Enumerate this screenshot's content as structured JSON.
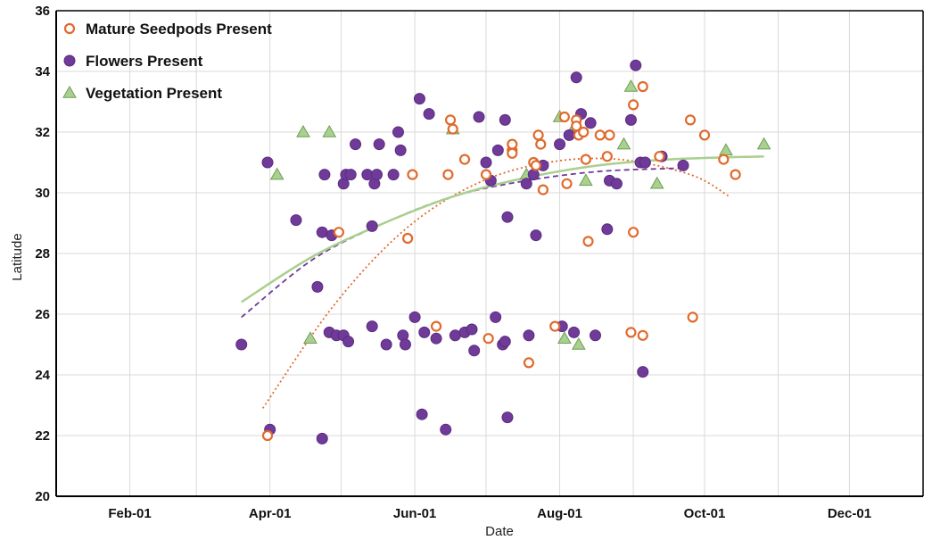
{
  "chart_data": {
    "type": "scatter",
    "xlabel": "Date",
    "ylabel": "Latitude",
    "x_ticks": [
      "Feb-01",
      "Apr-01",
      "Jun-01",
      "Aug-01",
      "Oct-01",
      "Dec-01"
    ],
    "x_tick_days": [
      32,
      91,
      152,
      213,
      274,
      335
    ],
    "x_range_days": [
      1,
      366
    ],
    "ylim": [
      20,
      36
    ],
    "y_ticks": [
      20,
      22,
      24,
      26,
      28,
      30,
      32,
      34,
      36
    ],
    "grid": true,
    "legend_position": "top-left",
    "series": [
      {
        "name": "Mature Seedpods Present",
        "marker": "open-circle",
        "color": "#e06a2c",
        "points": [
          [
            "Mar-31",
            22.0
          ],
          [
            "Apr-30",
            28.7
          ],
          [
            "May-29",
            28.5
          ],
          [
            "May-31",
            30.6
          ],
          [
            "Jun-10",
            25.6
          ],
          [
            "Jun-15",
            30.6
          ],
          [
            "Jun-16",
            32.4
          ],
          [
            "Jun-17",
            32.1
          ],
          [
            "Jun-22",
            31.1
          ],
          [
            "Jul-01",
            30.6
          ],
          [
            "Jul-02",
            25.2
          ],
          [
            "Jul-12",
            31.4
          ],
          [
            "Jul-12",
            31.6
          ],
          [
            "Jul-12",
            31.3
          ],
          [
            "Jul-19",
            24.4
          ],
          [
            "Jul-21",
            31.0
          ],
          [
            "Jul-22",
            30.9
          ],
          [
            "Jul-23",
            31.9
          ],
          [
            "Jul-24",
            31.6
          ],
          [
            "Jul-25",
            30.1
          ],
          [
            "Jul-30",
            25.6
          ],
          [
            "Aug-03",
            32.5
          ],
          [
            "Aug-04",
            30.3
          ],
          [
            "Aug-08",
            32.4
          ],
          [
            "Aug-08",
            32.2
          ],
          [
            "Aug-09",
            31.9
          ],
          [
            "Aug-11",
            32.0
          ],
          [
            "Aug-12",
            31.1
          ],
          [
            "Aug-13",
            28.4
          ],
          [
            "Aug-18",
            31.9
          ],
          [
            "Aug-21",
            31.2
          ],
          [
            "Aug-22",
            31.9
          ],
          [
            "Aug-31",
            25.4
          ],
          [
            "Sep-01",
            32.9
          ],
          [
            "Sep-01",
            28.7
          ],
          [
            "Sep-05",
            33.5
          ],
          [
            "Sep-05",
            25.3
          ],
          [
            "Sep-12",
            31.2
          ],
          [
            "Sep-25",
            32.4
          ],
          [
            "Sep-26",
            25.9
          ],
          [
            "Oct-01",
            31.9
          ],
          [
            "Oct-09",
            31.1
          ],
          [
            "Oct-14",
            30.6
          ]
        ]
      },
      {
        "name": "Flowers Present",
        "marker": "filled-circle",
        "color": "#6f3a98",
        "points": [
          [
            "Mar-20",
            25.0
          ],
          [
            "Mar-31",
            31.0
          ],
          [
            "Apr-01",
            22.2
          ],
          [
            "Apr-12",
            29.1
          ],
          [
            "Apr-21",
            26.9
          ],
          [
            "Apr-23",
            21.9
          ],
          [
            "Apr-23",
            28.7
          ],
          [
            "Apr-24",
            30.6
          ],
          [
            "Apr-26",
            25.4
          ],
          [
            "Apr-27",
            28.6
          ],
          [
            "Apr-29",
            25.3
          ],
          [
            "May-02",
            25.3
          ],
          [
            "May-02",
            30.3
          ],
          [
            "May-03",
            30.6
          ],
          [
            "May-04",
            25.1
          ],
          [
            "May-05",
            30.6
          ],
          [
            "May-07",
            31.6
          ],
          [
            "May-12",
            30.6
          ],
          [
            "May-14",
            25.6
          ],
          [
            "May-14",
            28.9
          ],
          [
            "May-15",
            30.3
          ],
          [
            "May-16",
            30.6
          ],
          [
            "May-17",
            31.6
          ],
          [
            "May-20",
            25.0
          ],
          [
            "May-23",
            30.6
          ],
          [
            "May-25",
            32.0
          ],
          [
            "May-26",
            31.4
          ],
          [
            "May-27",
            25.3
          ],
          [
            "May-28",
            25.0
          ],
          [
            "Jun-01",
            25.9
          ],
          [
            "Jun-03",
            33.1
          ],
          [
            "Jun-04",
            22.7
          ],
          [
            "Jun-05",
            25.4
          ],
          [
            "Jun-07",
            32.6
          ],
          [
            "Jun-10",
            25.2
          ],
          [
            "Jun-14",
            22.2
          ],
          [
            "Jun-18",
            25.3
          ],
          [
            "Jun-22",
            25.4
          ],
          [
            "Jun-25",
            25.5
          ],
          [
            "Jun-26",
            24.8
          ],
          [
            "Jun-28",
            32.5
          ],
          [
            "Jul-01",
            31.0
          ],
          [
            "Jul-03",
            30.4
          ],
          [
            "Jul-05",
            25.9
          ],
          [
            "Jul-06",
            31.4
          ],
          [
            "Jul-08",
            25.0
          ],
          [
            "Jul-09",
            32.4
          ],
          [
            "Jul-09",
            25.1
          ],
          [
            "Jul-10",
            29.2
          ],
          [
            "Jul-10",
            22.6
          ],
          [
            "Jul-18",
            30.3
          ],
          [
            "Jul-19",
            25.3
          ],
          [
            "Jul-21",
            30.6
          ],
          [
            "Jul-22",
            28.6
          ],
          [
            "Jul-25",
            30.9
          ],
          [
            "Aug-01",
            31.6
          ],
          [
            "Aug-02",
            25.6
          ],
          [
            "Aug-05",
            31.9
          ],
          [
            "Aug-07",
            25.4
          ],
          [
            "Aug-08",
            33.8
          ],
          [
            "Aug-10",
            32.6
          ],
          [
            "Aug-14",
            32.3
          ],
          [
            "Aug-16",
            25.3
          ],
          [
            "Aug-21",
            28.8
          ],
          [
            "Aug-22",
            30.4
          ],
          [
            "Aug-25",
            30.3
          ],
          [
            "Aug-31",
            32.4
          ],
          [
            "Sep-02",
            34.2
          ],
          [
            "Sep-04",
            31.0
          ],
          [
            "Sep-05",
            24.1
          ],
          [
            "Sep-06",
            31.0
          ],
          [
            "Sep-13",
            31.2
          ],
          [
            "Sep-22",
            30.9
          ]
        ]
      },
      {
        "name": "Vegetation Present",
        "marker": "triangle",
        "color": "#a9d08e",
        "points": [
          [
            "Apr-04",
            30.6
          ],
          [
            "Apr-15",
            32.0
          ],
          [
            "Apr-18",
            25.2
          ],
          [
            "Apr-26",
            32.0
          ],
          [
            "Jun-17",
            32.1
          ],
          [
            "Jul-18",
            30.6
          ],
          [
            "Aug-01",
            32.5
          ],
          [
            "Aug-03",
            25.2
          ],
          [
            "Aug-06",
            32.0
          ],
          [
            "Aug-09",
            25.0
          ],
          [
            "Aug-12",
            30.4
          ],
          [
            "Aug-28",
            31.6
          ],
          [
            "Aug-31",
            33.5
          ],
          [
            "Sep-11",
            30.3
          ],
          [
            "Oct-10",
            31.4
          ],
          [
            "Oct-26",
            31.6
          ]
        ]
      }
    ],
    "trendlines": [
      {
        "series": "Mature Seedpods Present",
        "style": "dotted",
        "color": "#e06a2c",
        "x_range": [
          "Mar-29",
          "Oct-11"
        ],
        "points": [
          [
            "Mar-29",
            22.9
          ],
          [
            "Apr-28",
            26.3
          ],
          [
            "May-28",
            28.8
          ],
          [
            "Jun-27",
            30.3
          ],
          [
            "Jul-27",
            31.0
          ],
          [
            "Aug-26",
            31.1
          ],
          [
            "Sep-25",
            30.6
          ],
          [
            "Oct-11",
            29.9
          ]
        ]
      },
      {
        "series": "Flowers Present",
        "style": "dashed",
        "color": "#6f3a98",
        "x_range": [
          "Mar-20",
          "Sep-22"
        ],
        "points": [
          [
            "Mar-20",
            25.9
          ],
          [
            "Apr-19",
            27.8
          ],
          [
            "May-19",
            29.0
          ],
          [
            "Jun-18",
            29.9
          ],
          [
            "Jul-18",
            30.4
          ],
          [
            "Aug-17",
            30.7
          ],
          [
            "Sep-16",
            30.8
          ],
          [
            "Sep-22",
            30.8
          ]
        ]
      },
      {
        "series": "Vegetation Present",
        "style": "solid",
        "color": "#a9d08e",
        "x_range": [
          "Mar-20",
          "Oct-26"
        ],
        "points": [
          [
            "Mar-20",
            26.4
          ],
          [
            "Apr-19",
            27.9
          ],
          [
            "May-19",
            29.0
          ],
          [
            "Jun-18",
            29.9
          ],
          [
            "Jul-18",
            30.5
          ],
          [
            "Aug-17",
            30.9
          ],
          [
            "Sep-16",
            31.1
          ],
          [
            "Oct-26",
            31.2
          ]
        ]
      }
    ]
  }
}
